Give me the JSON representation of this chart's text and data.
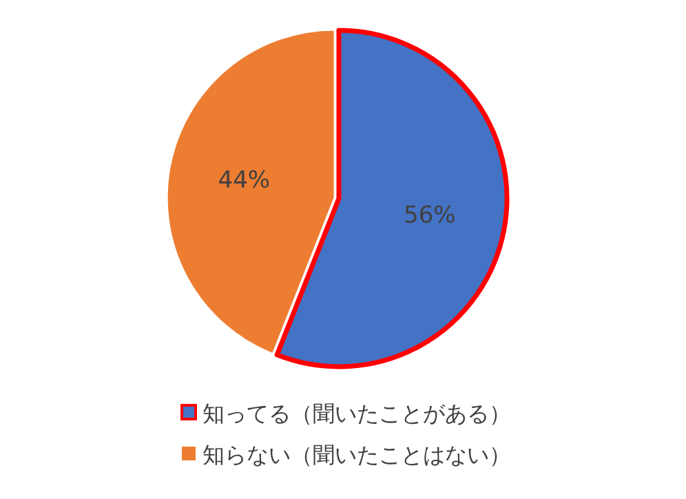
{
  "chart_data": {
    "type": "pie",
    "categories": [
      "知ってる（聞いたことがある）",
      "知らない（聞いたことはない）"
    ],
    "values": [
      56,
      44
    ],
    "colors": [
      "#4472c4",
      "#ed7d31"
    ],
    "value_labels": [
      "56%",
      "44%"
    ],
    "legend": "bottom"
  }
}
